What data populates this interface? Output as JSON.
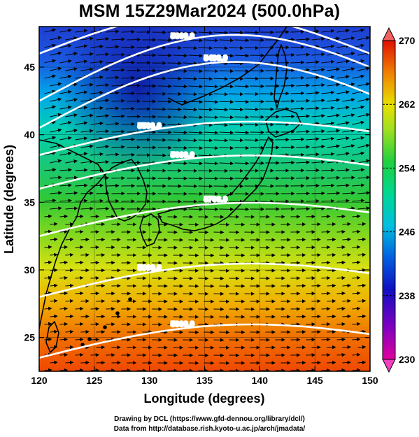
{
  "title": "MSM 15Z29Mar2024 (500.0hPa)",
  "map": {
    "x_axis": {
      "label": "Longitude (degrees)",
      "range": [
        120,
        150
      ],
      "ticks": [
        "120",
        "125",
        "130",
        "135",
        "140",
        "145",
        "150"
      ]
    },
    "y_axis": {
      "label": "Latitude  (degrees)",
      "range": [
        22.5,
        48
      ],
      "ticks": [
        "25",
        "30",
        "35",
        "40",
        "45"
      ]
    },
    "field": "Temperature shading (K) with geopotential height contours and wind vectors",
    "colorbar": {
      "min": 230,
      "max": 270,
      "tick_labels": [
        "270",
        "262",
        "254",
        "246",
        "238",
        "230"
      ],
      "colors": [
        "#e00080",
        "#8000c0",
        "#1010c0",
        "#0060e0",
        "#00b0e0",
        "#00d8a0",
        "#20d040",
        "#90e020",
        "#e0e000",
        "#f0a000",
        "#f05000",
        "#e01000"
      ]
    },
    "contours": [
      {
        "label": "5200.0",
        "lat_at_120": 47.5
      },
      {
        "label": "5300.0",
        "lat_at_120": 42.5
      },
      {
        "label": "5400.0",
        "lat_at_120": 40.5
      },
      {
        "label": "5500.0",
        "lat_at_120": 38.5
      },
      {
        "label": "5600.0",
        "lat_at_120": 36.0
      },
      {
        "label": "5700.0",
        "lat_at_120": 32.5
      },
      {
        "label": "5800.0",
        "lat_at_120": 28.0
      },
      {
        "label": "5900.0",
        "lat_at_120": 23.5
      }
    ]
  },
  "credits": {
    "line1": "Drawing by DCL (https://www.gfd-dennou.org/library/dcl/)",
    "line2": "Data from http://database.rish.kyoto-u.ac.jp/arch/jmadata/"
  }
}
